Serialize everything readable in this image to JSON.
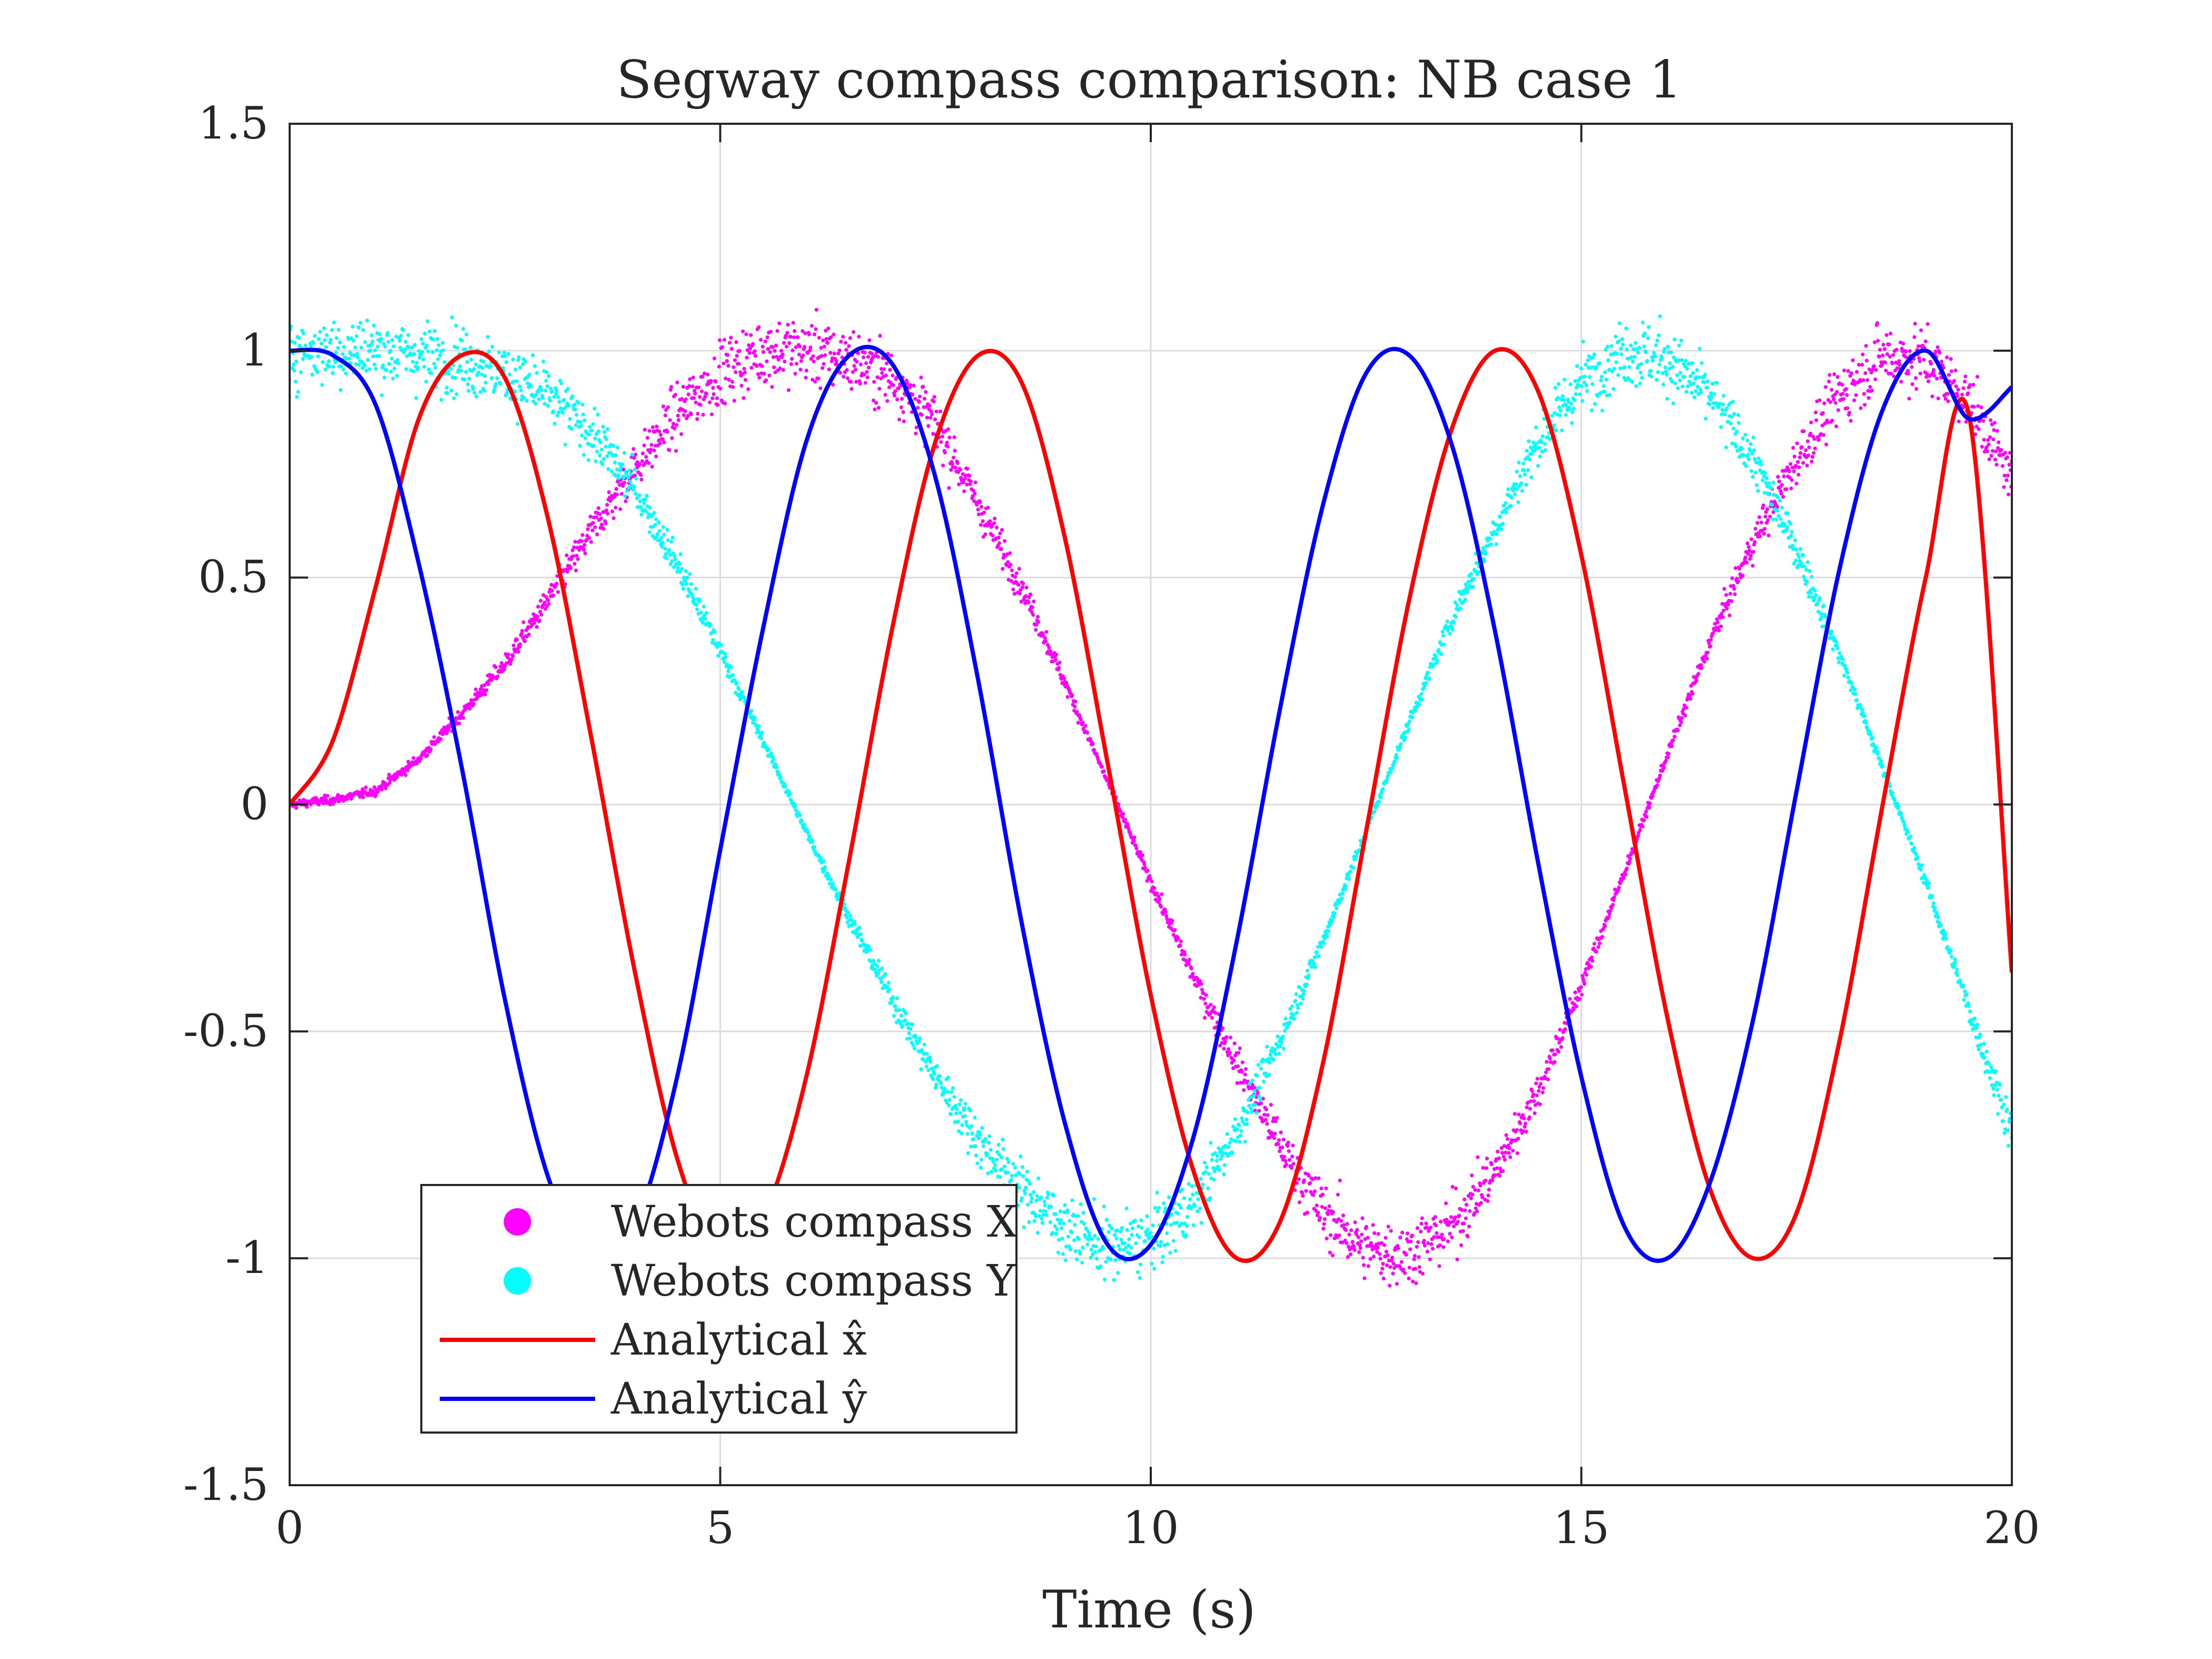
{
  "chart_data": {
    "type": "line",
    "title": "Segway compass comparison: NB case 1",
    "xlabel": "Time (s)",
    "ylabel": "",
    "xlim": [
      0,
      20
    ],
    "ylim": [
      -1.5,
      1.5
    ],
    "xticks": [
      0,
      5,
      10,
      15,
      20
    ],
    "xtick_labels": [
      "0",
      "5",
      "10",
      "15",
      "20"
    ],
    "yticks": [
      -1.5,
      -1,
      -0.5,
      0,
      0.5,
      1,
      1.5
    ],
    "ytick_labels": [
      "-1.5",
      "-1",
      "-0.5",
      "0",
      "0.5",
      "1",
      "1.5"
    ],
    "grid": true,
    "legend_position": "bottom-left",
    "series": [
      {
        "name": "Webots compass X",
        "kind": "scatter",
        "color": "#ff00ff",
        "x": [
          0,
          0.5,
          1.0,
          1.5,
          2.0,
          2.5,
          3.0,
          3.5,
          4.0,
          4.5,
          5.0,
          5.5,
          6.0,
          6.5,
          7.0,
          7.5,
          8.0,
          8.5,
          9.0,
          9.5,
          10.0,
          10.5,
          11.0,
          11.5,
          12.0,
          12.5,
          13.0,
          13.5,
          14.0,
          14.5,
          15.0,
          15.5,
          16.0,
          16.5,
          17.0,
          17.5,
          18.0,
          18.5,
          19.0,
          19.5,
          20.0
        ],
        "y": [
          0.0,
          0.01,
          0.03,
          0.1,
          0.2,
          0.31,
          0.45,
          0.6,
          0.74,
          0.86,
          0.95,
          1.0,
          1.0,
          0.98,
          0.94,
          0.84,
          0.66,
          0.48,
          0.27,
          0.05,
          -0.17,
          -0.38,
          -0.57,
          -0.75,
          -0.9,
          -0.98,
          -0.99,
          -0.93,
          -0.81,
          -0.63,
          -0.4,
          -0.15,
          0.11,
          0.36,
          0.58,
          0.76,
          0.9,
          0.99,
          0.98,
          0.89,
          0.72
        ]
      },
      {
        "name": "Webots compass Y",
        "kind": "scatter",
        "color": "#00ffff",
        "x": [
          0,
          0.5,
          1.0,
          1.5,
          2.0,
          2.5,
          3.0,
          3.5,
          4.0,
          4.5,
          5.0,
          5.5,
          6.0,
          6.5,
          7.0,
          7.5,
          8.0,
          8.5,
          9.0,
          9.5,
          10.0,
          10.5,
          11.0,
          11.5,
          12.0,
          12.5,
          13.0,
          13.5,
          14.0,
          14.5,
          15.0,
          15.5,
          16.0,
          16.5,
          17.0,
          17.5,
          18.0,
          18.5,
          19.0,
          19.5,
          20.0
        ],
        "y": [
          1.0,
          1.0,
          1.0,
          0.99,
          0.98,
          0.95,
          0.9,
          0.82,
          0.7,
          0.53,
          0.34,
          0.14,
          -0.06,
          -0.25,
          -0.43,
          -0.6,
          -0.74,
          -0.85,
          -0.93,
          -0.98,
          -0.96,
          -0.88,
          -0.72,
          -0.52,
          -0.3,
          -0.06,
          0.18,
          0.41,
          0.61,
          0.8,
          0.93,
          1.0,
          0.98,
          0.9,
          0.76,
          0.56,
          0.33,
          0.08,
          -0.17,
          -0.45,
          -0.72
        ]
      },
      {
        "name": "Analytical x̂",
        "kind": "line",
        "color": "#ff0000",
        "x": [
          0,
          0.5,
          1.0,
          1.5,
          2.0,
          2.5,
          3.0,
          3.5,
          4.0,
          4.5,
          5.0,
          5.5,
          6.0,
          6.5,
          7.0,
          7.5,
          8.0,
          8.5,
          9.0,
          9.5,
          10.0,
          10.5,
          11.0,
          11.5,
          12.0,
          12.5,
          13.0,
          13.5,
          14.0,
          14.5,
          15.0,
          15.5,
          16.0,
          16.5,
          17.0,
          17.5,
          18.0,
          18.5,
          19.0,
          19.5,
          20.0
        ],
        "y": [
          0.0,
          0.14,
          0.48,
          0.85,
          0.99,
          0.94,
          0.63,
          0.15,
          -0.36,
          -0.78,
          -0.99,
          -0.91,
          -0.6,
          -0.12,
          0.39,
          0.8,
          0.99,
          0.93,
          0.59,
          0.09,
          -0.42,
          -0.81,
          -1.0,
          -0.92,
          -0.57,
          -0.06,
          0.45,
          0.83,
          1.0,
          0.91,
          0.55,
          0.04,
          -0.47,
          -0.85,
          -1.0,
          -0.9,
          -0.52,
          0.0,
          0.5,
          0.86,
          -0.37
        ]
      },
      {
        "name": "Analytical ŷ",
        "kind": "line",
        "color": "#0000ff",
        "x": [
          0,
          0.5,
          1.0,
          1.5,
          2.0,
          2.5,
          3.0,
          3.5,
          4.0,
          4.5,
          5.0,
          5.5,
          6.0,
          6.5,
          7.0,
          7.5,
          8.0,
          8.5,
          9.0,
          9.5,
          10.0,
          10.5,
          11.0,
          11.5,
          12.0,
          12.5,
          13.0,
          13.5,
          14.0,
          14.5,
          15.0,
          15.5,
          16.0,
          16.5,
          17.0,
          17.5,
          18.0,
          18.5,
          19.0,
          19.5,
          20.0
        ],
        "y": [
          1.0,
          0.99,
          0.88,
          0.53,
          0.08,
          -0.43,
          -0.82,
          -1.0,
          -0.93,
          -0.6,
          -0.1,
          0.39,
          0.8,
          0.99,
          0.97,
          0.72,
          0.27,
          -0.26,
          -0.7,
          -0.97,
          -0.97,
          -0.73,
          -0.3,
          0.21,
          0.66,
          0.95,
          0.99,
          0.79,
          0.38,
          -0.13,
          -0.6,
          -0.93,
          -1.0,
          -0.83,
          -0.47,
          0.03,
          0.52,
          0.87,
          1.0,
          0.85,
          0.92
        ]
      }
    ],
    "legend": [
      {
        "label": "Webots compass X",
        "symbol": "dot",
        "color": "#ff00ff"
      },
      {
        "label": "Webots compass Y",
        "symbol": "dot",
        "color": "#00ffff"
      },
      {
        "label": "Analytical x̂",
        "symbol": "line",
        "color": "#ff0000"
      },
      {
        "label": "Analytical ŷ",
        "symbol": "line",
        "color": "#0000ff"
      }
    ]
  }
}
